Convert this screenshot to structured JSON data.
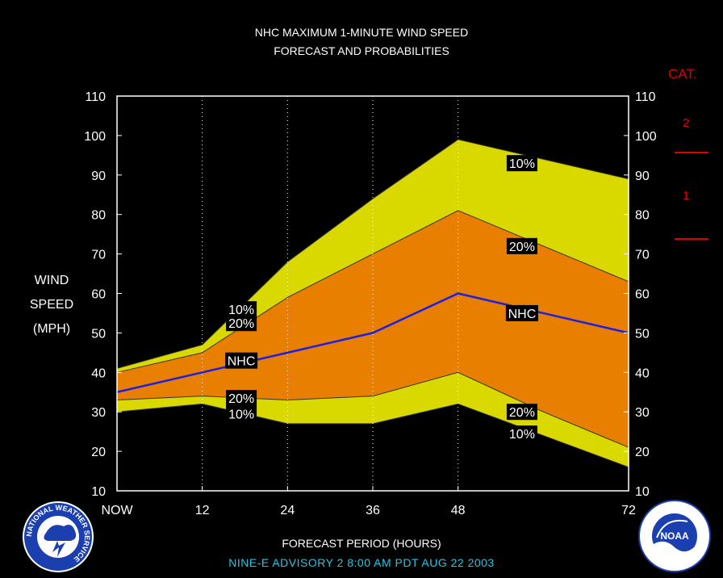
{
  "header": {
    "line1": "NHC MAXIMUM 1-MINUTE WIND SPEED",
    "line2": "FORECAST AND PROBABILITIES"
  },
  "y_axis_label": [
    "WIND",
    "SPEED",
    "(MPH)"
  ],
  "x_axis_title": "FORECAST PERIOD (HOURS)",
  "advisory": "NINE-E   ADVISORY  2 8:00  AM  PDT  AUG 22  2003",
  "category_key": {
    "title": "CAT.",
    "labels": [
      "2",
      "1"
    ],
    "color": "#e00000"
  },
  "logos": {
    "left": {
      "icon": "nws-logo",
      "text": "NATIONAL WEATHER SERVICE"
    },
    "right": {
      "icon": "noaa-logo",
      "text": "NOAA"
    }
  },
  "colors": {
    "outer_band": "#d9d900",
    "inner_band": "#e87f00",
    "nhc_line": "#1e1ee6",
    "grid": "#ffffff",
    "category": "#e00000",
    "advisory": "#22c8e8"
  },
  "chart_data": {
    "type": "area",
    "title": "NHC MAXIMUM 1-MINUTE WIND SPEED FORECAST AND PROBABILITIES",
    "xlabel": "FORECAST PERIOD (HOURS)",
    "ylabel": "WIND SPEED (MPH)",
    "xlim": [
      0,
      72
    ],
    "ylim": [
      10,
      110
    ],
    "x_ticks": [
      {
        "x": 0,
        "label": "NOW"
      },
      {
        "x": 12,
        "label": "12"
      },
      {
        "x": 24,
        "label": "24"
      },
      {
        "x": 36,
        "label": "36"
      },
      {
        "x": 48,
        "label": "48"
      },
      {
        "x": 72,
        "label": "72"
      }
    ],
    "y_ticks": [
      10,
      20,
      30,
      40,
      50,
      60,
      70,
      80,
      90,
      100,
      110
    ],
    "grid_x": [
      12,
      24,
      36,
      48
    ],
    "x": [
      0,
      12,
      24,
      36,
      48,
      60,
      72
    ],
    "series": [
      {
        "name": "10%",
        "role": "upper_outer",
        "values": [
          41,
          47,
          68,
          84,
          99,
          94,
          89
        ]
      },
      {
        "name": "20%",
        "role": "upper_inner",
        "values": [
          40,
          45,
          59,
          70,
          81,
          72,
          63
        ]
      },
      {
        "name": "NHC",
        "role": "forecast",
        "values": [
          35,
          40,
          45,
          50,
          60,
          55,
          50
        ]
      },
      {
        "name": "20%",
        "role": "lower_inner",
        "values": [
          33,
          34,
          33,
          34,
          40,
          30,
          21
        ]
      },
      {
        "name": "10%",
        "role": "lower_outer",
        "values": [
          30,
          32,
          27,
          27,
          32,
          24,
          16
        ]
      }
    ],
    "annotations": [
      {
        "text": "10%",
        "x": 17.5,
        "y": 56
      },
      {
        "text": "20%",
        "x": 17.5,
        "y": 52.5
      },
      {
        "text": "NHC",
        "x": 17.5,
        "y": 43
      },
      {
        "text": "20%",
        "x": 17.5,
        "y": 33.5
      },
      {
        "text": "10%",
        "x": 17.5,
        "y": 29.5
      },
      {
        "text": "10%",
        "x": 57,
        "y": 93
      },
      {
        "text": "20%",
        "x": 57,
        "y": 72
      },
      {
        "text": "NHC",
        "x": 57,
        "y": 55
      },
      {
        "text": "20%",
        "x": 57,
        "y": 30
      },
      {
        "text": "10%",
        "x": 57,
        "y": 24.5
      }
    ],
    "category_thresholds": [
      {
        "label": "2",
        "y": 96
      },
      {
        "label": "1",
        "y": 74
      }
    ]
  }
}
